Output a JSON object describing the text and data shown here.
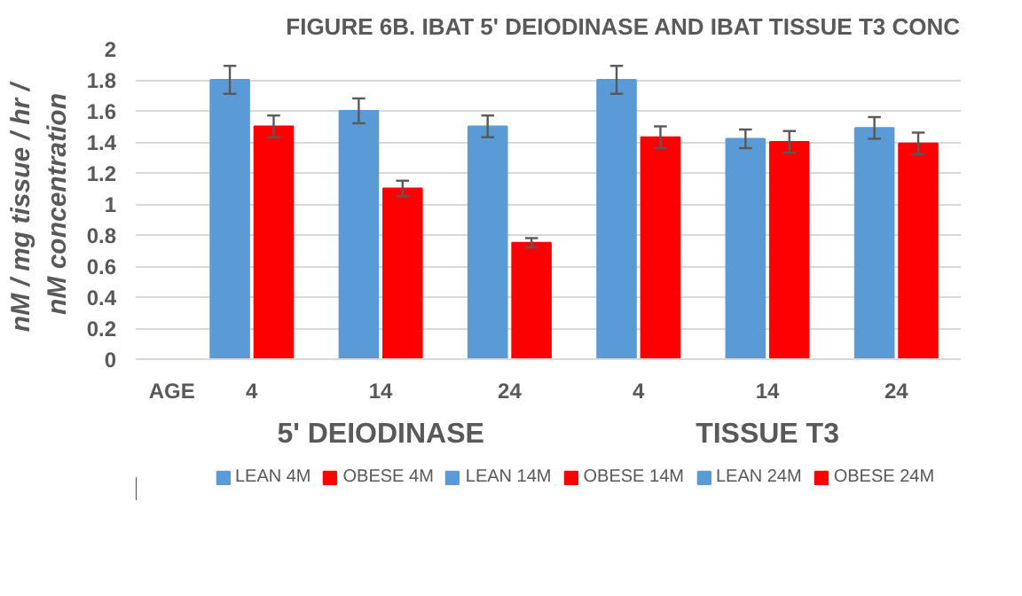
{
  "chart_data": {
    "type": "bar",
    "title": "FIGURE 6B. IBAT 5' DEIODINASE AND IBAT TISSUE T3 CONC",
    "ylabel": "nM / mg  tissue / hr /\nnM concentration",
    "xlabel": "AGE",
    "categories": [
      "4",
      "14",
      "24",
      "4",
      "14",
      "24"
    ],
    "annotations": [
      "5' DEIODINASE",
      "TISSUE T3"
    ],
    "series": [
      {
        "name": "LEAN 4M",
        "color": "#5b9bd5",
        "values": [
          1.8,
          null,
          null,
          1.8,
          null,
          null
        ],
        "errors": [
          0.09,
          null,
          null,
          0.09,
          null,
          null
        ]
      },
      {
        "name": "OBESE 4M",
        "color": "#ff0000",
        "values": [
          1.5,
          null,
          null,
          1.43,
          null,
          null
        ],
        "errors": [
          0.07,
          null,
          null,
          0.07,
          null,
          null
        ]
      },
      {
        "name": "LEAN 14M",
        "color": "#5b9bd5",
        "values": [
          null,
          1.6,
          null,
          null,
          1.42,
          null
        ],
        "errors": [
          null,
          0.08,
          null,
          null,
          0.06,
          null
        ]
      },
      {
        "name": "OBESE 14M",
        "color": "#ff0000",
        "values": [
          null,
          1.1,
          null,
          null,
          1.4,
          null
        ],
        "errors": [
          null,
          0.05,
          null,
          null,
          0.07,
          null
        ]
      },
      {
        "name": "LEAN 24M",
        "color": "#5b9bd5",
        "values": [
          null,
          null,
          1.5,
          null,
          null,
          1.49
        ],
        "errors": [
          null,
          null,
          0.07,
          null,
          null,
          0.07
        ]
      },
      {
        "name": "OBESE 24M",
        "color": "#ff0000",
        "values": [
          null,
          null,
          0.75,
          null,
          null,
          1.39
        ],
        "errors": [
          null,
          null,
          0.03,
          null,
          null,
          0.07
        ]
      }
    ],
    "ylim": [
      0,
      2
    ],
    "yticks": [
      0,
      0.2,
      0.4,
      0.6,
      0.8,
      1,
      1.2,
      1.4,
      1.6,
      1.8,
      2
    ],
    "grid": "y",
    "legend": "bottom"
  }
}
